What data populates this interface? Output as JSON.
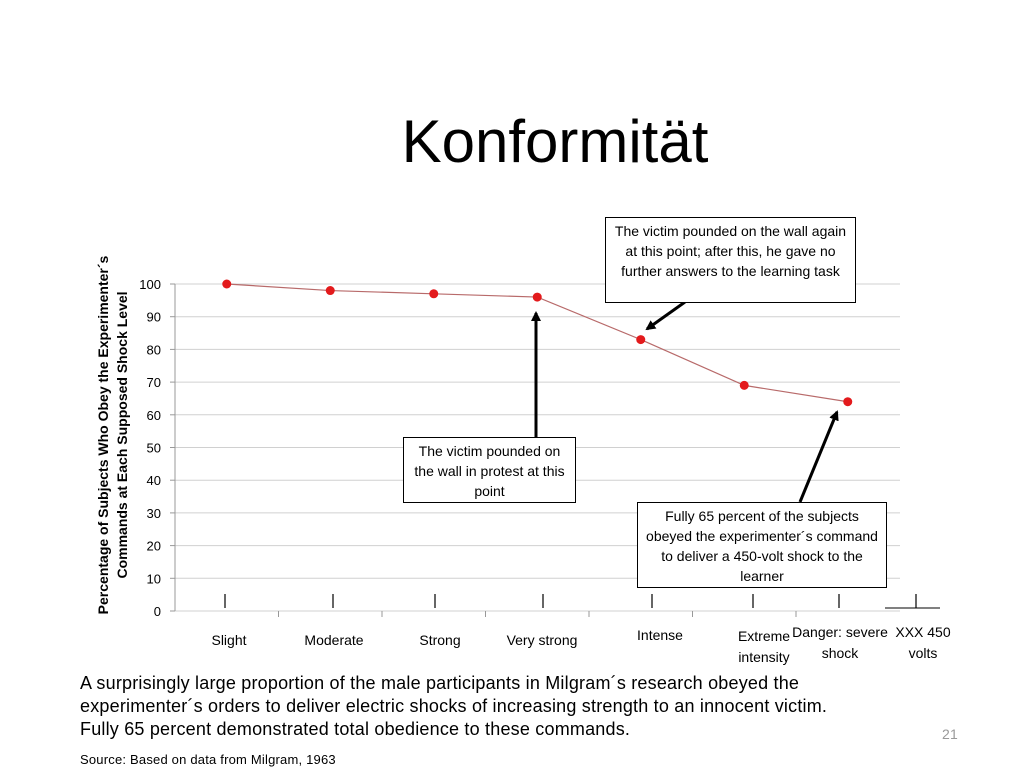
{
  "chart_data": {
    "type": "line",
    "title": "Konformität",
    "ylabel": [
      "Percentage of Subjects Who Obey the Experimenter´s",
      "Commands at Each Supposed Shock Level"
    ],
    "categories": [
      "Slight",
      "Moderate",
      "Strong",
      "Very strong",
      "Intense",
      "Extreme intensity",
      "Danger: severe shock",
      "XXX 450 volts"
    ],
    "values": [
      100,
      98,
      97,
      96,
      83,
      69,
      64,
      null
    ],
    "color": "#e31a1c",
    "line_color": "#b86a6a",
    "ylim": [
      0,
      100
    ],
    "yticks": [
      0,
      10,
      20,
      30,
      40,
      50,
      60,
      70,
      80,
      90,
      100
    ],
    "grid": true,
    "annotations": [
      "The victim pounded on the wall again at this point; after this, he gave no further answers to the learning task",
      "The victim pounded on the wall in protest at this point",
      "Fully 65 percent of the subjects obeyed the experimenter´s command to deliver a 450-volt shock to the learner"
    ]
  },
  "body": [
    "A surprisingly large proportion of the male participants in Milgram´s research obeyed the",
    "experimenter´s orders to deliver electric shocks of increasing strength to an innocent victim.",
    "Fully 65 percent demonstrated total obedience to these commands."
  ],
  "source": "Source: Based on data from Milgram, 1963",
  "page_number": "21"
}
